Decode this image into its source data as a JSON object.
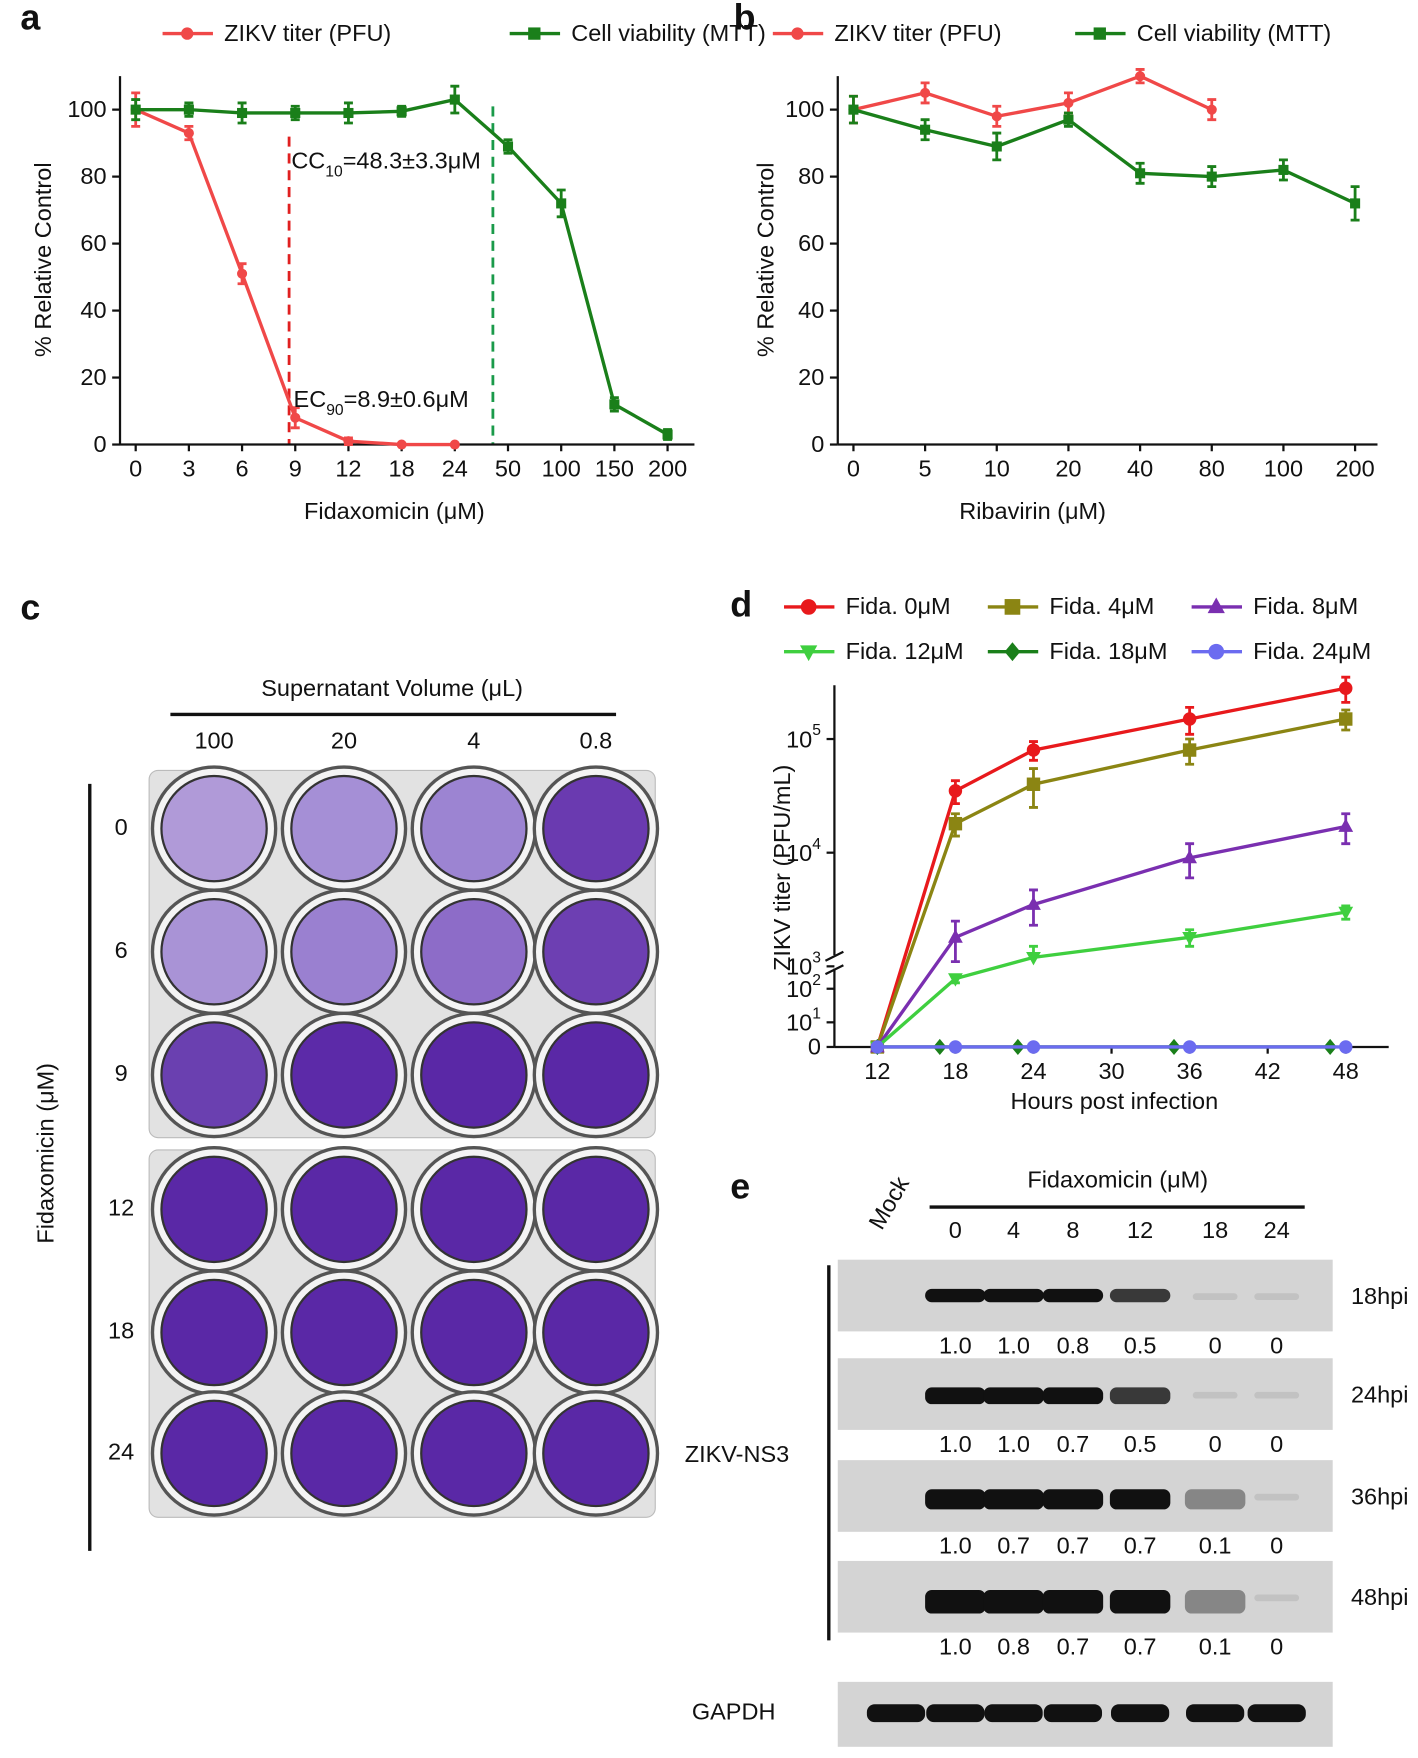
{
  "chart_data": [
    {
      "panel": "a",
      "type": "line",
      "x_label": "Fidaxomicin (μM)",
      "y_label": "% Relative Control",
      "categories": [
        "0",
        "3",
        "6",
        "9",
        "12",
        "18",
        "24",
        "50",
        "100",
        "150",
        "200"
      ],
      "series": [
        {
          "name": "ZIKV titer (PFU)",
          "color": "#f04848",
          "marker": "circle",
          "values": [
            100,
            93,
            51,
            8,
            1,
            0,
            0,
            null,
            null,
            null,
            null
          ],
          "errors": [
            5,
            2,
            3,
            3,
            1,
            0,
            0,
            null,
            null,
            null,
            null
          ]
        },
        {
          "name": "Cell viability (MTT)",
          "color": "#1a7f1a",
          "marker": "square",
          "values": [
            100,
            100,
            99,
            99,
            99,
            99.5,
            103,
            89,
            72,
            12,
            3
          ],
          "errors": [
            3,
            2,
            3,
            2,
            3,
            1.5,
            4,
            2,
            4,
            2,
            1.5
          ]
        }
      ],
      "ylim": [
        0,
        110
      ],
      "yticks": [
        0,
        20,
        40,
        60,
        80,
        100
      ],
      "annotations": [
        {
          "parts": [
            "CC",
            "10",
            "=48.3±3.3μM"
          ]
        },
        {
          "parts": [
            "EC",
            "90",
            "=8.9±0.6μM"
          ]
        }
      ]
    },
    {
      "panel": "b",
      "type": "line",
      "x_label": "Ribavirin (μM)",
      "y_label": "% Relative Control",
      "categories": [
        "0",
        "5",
        "10",
        "20",
        "40",
        "80",
        "100",
        "200"
      ],
      "series": [
        {
          "name": "ZIKV titer (PFU)",
          "color": "#f04848",
          "marker": "circle",
          "values": [
            100,
            105,
            98,
            102,
            110,
            100,
            null,
            null
          ],
          "errors": [
            4,
            3,
            3,
            3,
            2,
            3,
            null,
            null
          ]
        },
        {
          "name": "Cell viability (MTT)",
          "color": "#1a7f1a",
          "marker": "square",
          "values": [
            100,
            94,
            89,
            97,
            81,
            80,
            82,
            72
          ],
          "errors": [
            4,
            3,
            4,
            2,
            3,
            3,
            3,
            5
          ]
        }
      ],
      "ylim": [
        0,
        110
      ],
      "yticks": [
        0,
        20,
        40,
        60,
        80,
        100
      ]
    },
    {
      "panel": "d",
      "type": "line",
      "x_label": "Hours post infection",
      "y_label": "ZIKV titer (PFU/mL)",
      "yscale": "broken-log",
      "x": [
        12,
        18,
        24,
        36,
        48
      ],
      "xlim": [
        8.7,
        51.3
      ],
      "xticks": [
        12,
        18,
        24,
        30,
        36,
        42,
        48
      ],
      "series": [
        {
          "name": "Fida. 0μM",
          "color": "#e8191c",
          "marker": "circle",
          "values": [
            0,
            35000,
            80000,
            150000,
            280000
          ],
          "errors": [
            0,
            8000,
            15000,
            40000,
            70000
          ]
        },
        {
          "name": "Fida. 4μM",
          "color": "#8b8513",
          "marker": "square",
          "values": [
            0,
            18000,
            40000,
            80000,
            150000
          ],
          "errors": [
            0,
            4000,
            15000,
            20000,
            30000
          ]
        },
        {
          "name": "Fida. 8μM",
          "color": "#7a2fb0",
          "marker": "triangle-up",
          "values": [
            0,
            1800,
            3500,
            9000,
            17000
          ],
          "errors": [
            0,
            700,
            1200,
            3000,
            5000
          ]
        },
        {
          "name": "Fida. 12μM",
          "color": "#3fcf3f",
          "marker": "triangle-down",
          "values": [
            0,
            200,
            1200,
            1800,
            3000
          ],
          "errors": [
            0,
            50,
            300,
            300,
            400
          ]
        },
        {
          "name": "Fida. 18μM",
          "color": "#1a7f1a",
          "marker": "diamond",
          "values": [
            0,
            0,
            0,
            0,
            0
          ]
        },
        {
          "name": "Fida. 24μM",
          "color": "#6b6bf0",
          "marker": "circle",
          "values": [
            0,
            0,
            0,
            0,
            0
          ]
        }
      ],
      "yticks": [
        0,
        {
          "value": 10,
          "label": [
            "10",
            "1"
          ]
        },
        {
          "value": 100,
          "label": [
            "10",
            "2"
          ]
        },
        {
          "value": 1000,
          "label": [
            "10",
            "3"
          ]
        },
        {
          "value": 10000,
          "label": [
            "10",
            "4"
          ]
        },
        {
          "value": 100000,
          "label": [
            "10",
            "5"
          ]
        }
      ]
    }
  ],
  "plaque_panel": {
    "panel": "c",
    "title": "Supernatant Volume (μL)",
    "volumes": [
      "100",
      "20",
      "4",
      "0.8"
    ],
    "side_label": "Fidaxomicin (μM)",
    "rows": [
      "0",
      "6",
      "9",
      "12",
      "18",
      "24"
    ]
  },
  "blot_panel": {
    "panel": "e",
    "mock": "Mock",
    "title": "Fidaxomicin (μM)",
    "lanes": [
      "0",
      "4",
      "8",
      "12",
      "18",
      "24"
    ],
    "rows": [
      {
        "label": "18hpi",
        "quant": [
          "1.0",
          "1.0",
          "0.8",
          "0.5",
          "0",
          "0"
        ]
      },
      {
        "label": "24hpi",
        "quant": [
          "1.0",
          "1.0",
          "0.7",
          "0.5",
          "0",
          "0"
        ]
      },
      {
        "label": "36hpi",
        "quant": [
          "1.0",
          "0.7",
          "0.7",
          "0.7",
          "0.1",
          "0"
        ]
      },
      {
        "label": "48hpi",
        "quant": [
          "1.0",
          "0.8",
          "0.7",
          "0.7",
          "0.1",
          "0"
        ]
      }
    ],
    "target": "ZIKV-NS3",
    "loading": "GAPDH"
  }
}
